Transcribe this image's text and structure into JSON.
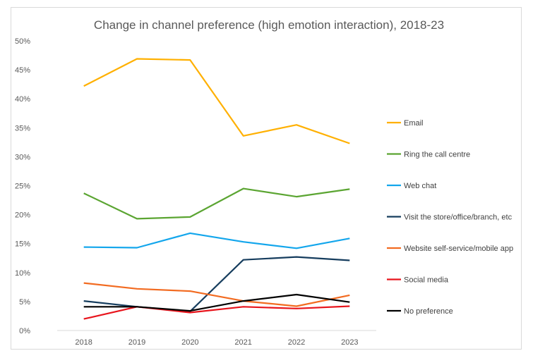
{
  "chart_data": {
    "type": "line",
    "title": "Change in channel preference (high emotion interaction), 2018-23",
    "xlabel": "",
    "ylabel": "",
    "categories": [
      "2018",
      "2019",
      "2020",
      "2021",
      "2022",
      "2023"
    ],
    "ylim": [
      0,
      50
    ],
    "yticks": [
      0,
      5,
      10,
      15,
      20,
      25,
      30,
      35,
      40,
      45,
      50
    ],
    "ytick_labels": [
      "0%",
      "5%",
      "10%",
      "15%",
      "20%",
      "25%",
      "30%",
      "35%",
      "40%",
      "45%",
      "50%"
    ],
    "grid": false,
    "legend_position": "right",
    "series": [
      {
        "name": "Email",
        "color": "#FFB000",
        "values": [
          42.2,
          46.9,
          46.7,
          33.6,
          35.5,
          32.3
        ]
      },
      {
        "name": "Ring the call centre",
        "color": "#5BA532",
        "values": [
          23.7,
          19.3,
          19.6,
          24.5,
          23.1,
          24.4
        ]
      },
      {
        "name": "Web chat",
        "color": "#13A6EC",
        "values": [
          14.4,
          14.3,
          16.8,
          15.3,
          14.2,
          15.9
        ]
      },
      {
        "name": "Visit the store/office/branch, etc",
        "color": "#163D5E",
        "values": [
          5.1,
          4.1,
          3.3,
          12.2,
          12.7,
          12.1
        ]
      },
      {
        "name": "Website self-service/mobile app",
        "color": "#F26B21",
        "values": [
          8.2,
          7.2,
          6.8,
          5.1,
          4.2,
          6.1
        ]
      },
      {
        "name": "Social media",
        "color": "#E8141C",
        "values": [
          2.0,
          4.1,
          3.1,
          4.1,
          3.8,
          4.2
        ]
      },
      {
        "name": "No preference",
        "color": "#000000",
        "values": [
          4.1,
          4.1,
          3.4,
          5.1,
          6.2,
          4.9
        ]
      }
    ]
  }
}
